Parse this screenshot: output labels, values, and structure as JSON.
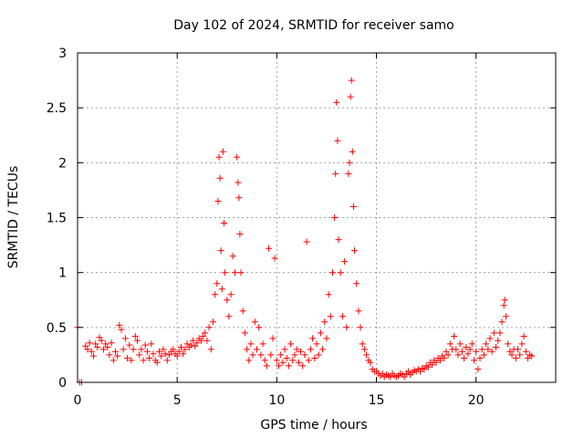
{
  "chart_data": {
    "type": "scatter",
    "title": "Day 102 of 2024, SRMTID for receiver samo",
    "xlabel": "GPS time / hours",
    "ylabel": "SRMTID / TECUs",
    "xlim": [
      0,
      24
    ],
    "ylim": [
      0,
      3
    ],
    "xticks": [
      0,
      5,
      10,
      15,
      20
    ],
    "xtick_labels": [
      "0",
      "5",
      "10",
      "15",
      "20"
    ],
    "yticks": [
      0,
      0.5,
      1,
      1.5,
      2,
      2.5,
      3
    ],
    "ytick_labels": [
      "0",
      "0.5",
      "1",
      "1.5",
      "2",
      "2.5",
      "3"
    ],
    "grid": true,
    "marker": "+",
    "series": [
      {
        "name": "SRMTID",
        "color": "#ff0000",
        "points": [
          [
            0.0,
            0.5
          ],
          [
            0.1,
            0.0
          ],
          [
            0.2,
            0.0
          ],
          [
            0.4,
            0.33
          ],
          [
            0.5,
            0.3
          ],
          [
            0.6,
            0.36
          ],
          [
            0.7,
            0.28
          ],
          [
            0.8,
            0.24
          ],
          [
            0.9,
            0.35
          ],
          [
            1.0,
            0.32
          ],
          [
            1.1,
            0.41
          ],
          [
            1.2,
            0.38
          ],
          [
            1.3,
            0.3
          ],
          [
            1.4,
            0.35
          ],
          [
            1.5,
            0.32
          ],
          [
            1.6,
            0.25
          ],
          [
            1.7,
            0.36
          ],
          [
            1.8,
            0.2
          ],
          [
            1.9,
            0.28
          ],
          [
            2.0,
            0.24
          ],
          [
            2.1,
            0.52
          ],
          [
            2.2,
            0.48
          ],
          [
            2.3,
            0.3
          ],
          [
            2.4,
            0.4
          ],
          [
            2.5,
            0.22
          ],
          [
            2.6,
            0.34
          ],
          [
            2.7,
            0.2
          ],
          [
            2.8,
            0.3
          ],
          [
            2.9,
            0.42
          ],
          [
            3.0,
            0.38
          ],
          [
            3.1,
            0.25
          ],
          [
            3.2,
            0.3
          ],
          [
            3.3,
            0.2
          ],
          [
            3.4,
            0.34
          ],
          [
            3.5,
            0.28
          ],
          [
            3.6,
            0.22
          ],
          [
            3.7,
            0.35
          ],
          [
            3.8,
            0.26
          ],
          [
            3.9,
            0.2
          ],
          [
            4.0,
            0.18
          ],
          [
            4.1,
            0.28
          ],
          [
            4.2,
            0.24
          ],
          [
            4.3,
            0.3
          ],
          [
            4.4,
            0.26
          ],
          [
            4.5,
            0.2
          ],
          [
            4.6,
            0.25
          ],
          [
            4.7,
            0.28
          ],
          [
            4.8,
            0.3
          ],
          [
            4.9,
            0.26
          ],
          [
            5.0,
            0.24
          ],
          [
            5.1,
            0.28
          ],
          [
            5.2,
            0.32
          ],
          [
            5.3,
            0.26
          ],
          [
            5.4,
            0.3
          ],
          [
            5.5,
            0.35
          ],
          [
            5.6,
            0.32
          ],
          [
            5.7,
            0.34
          ],
          [
            5.8,
            0.38
          ],
          [
            5.9,
            0.33
          ],
          [
            6.0,
            0.36
          ],
          [
            6.1,
            0.4
          ],
          [
            6.2,
            0.38
          ],
          [
            6.3,
            0.42
          ],
          [
            6.4,
            0.45
          ],
          [
            6.5,
            0.38
          ],
          [
            6.6,
            0.5
          ],
          [
            6.7,
            0.3
          ],
          [
            6.8,
            0.55
          ],
          [
            6.9,
            0.8
          ],
          [
            7.0,
            0.9
          ],
          [
            7.05,
            1.65
          ],
          [
            7.1,
            2.05
          ],
          [
            7.15,
            1.86
          ],
          [
            7.2,
            1.2
          ],
          [
            7.25,
            0.85
          ],
          [
            7.3,
            2.1
          ],
          [
            7.35,
            1.45
          ],
          [
            7.4,
            1.0
          ],
          [
            7.5,
            0.75
          ],
          [
            7.6,
            0.6
          ],
          [
            7.7,
            0.8
          ],
          [
            7.8,
            1.15
          ],
          [
            7.9,
            1.0
          ],
          [
            8.0,
            2.05
          ],
          [
            8.05,
            1.82
          ],
          [
            8.1,
            1.68
          ],
          [
            8.15,
            1.35
          ],
          [
            8.2,
            1.0
          ],
          [
            8.3,
            0.65
          ],
          [
            8.4,
            0.45
          ],
          [
            8.5,
            0.3
          ],
          [
            8.6,
            0.2
          ],
          [
            8.7,
            0.35
          ],
          [
            8.8,
            0.25
          ],
          [
            8.9,
            0.55
          ],
          [
            9.0,
            0.3
          ],
          [
            9.1,
            0.5
          ],
          [
            9.2,
            0.25
          ],
          [
            9.3,
            0.35
          ],
          [
            9.4,
            0.2
          ],
          [
            9.5,
            0.15
          ],
          [
            9.6,
            1.22
          ],
          [
            9.7,
            0.25
          ],
          [
            9.8,
            0.4
          ],
          [
            9.9,
            1.13
          ],
          [
            10.0,
            0.2
          ],
          [
            10.1,
            0.15
          ],
          [
            10.2,
            0.25
          ],
          [
            10.3,
            0.18
          ],
          [
            10.4,
            0.3
          ],
          [
            10.5,
            0.22
          ],
          [
            10.6,
            0.15
          ],
          [
            10.7,
            0.35
          ],
          [
            10.8,
            0.2
          ],
          [
            10.9,
            0.25
          ],
          [
            11.0,
            0.3
          ],
          [
            11.1,
            0.18
          ],
          [
            11.2,
            0.28
          ],
          [
            11.3,
            0.15
          ],
          [
            11.4,
            0.25
          ],
          [
            11.5,
            1.28
          ],
          [
            11.6,
            0.2
          ],
          [
            11.7,
            0.3
          ],
          [
            11.8,
            0.4
          ],
          [
            11.9,
            0.22
          ],
          [
            12.0,
            0.35
          ],
          [
            12.1,
            0.25
          ],
          [
            12.2,
            0.45
          ],
          [
            12.3,
            0.3
          ],
          [
            12.4,
            0.55
          ],
          [
            12.5,
            0.4
          ],
          [
            12.6,
            0.8
          ],
          [
            12.7,
            0.6
          ],
          [
            12.8,
            1.0
          ],
          [
            12.9,
            1.5
          ],
          [
            12.95,
            1.9
          ],
          [
            13.0,
            2.55
          ],
          [
            13.05,
            2.2
          ],
          [
            13.1,
            1.3
          ],
          [
            13.2,
            1.0
          ],
          [
            13.3,
            0.6
          ],
          [
            13.4,
            1.1
          ],
          [
            13.5,
            0.5
          ],
          [
            13.6,
            1.9
          ],
          [
            13.65,
            2.0
          ],
          [
            13.7,
            2.6
          ],
          [
            13.75,
            2.75
          ],
          [
            13.8,
            2.1
          ],
          [
            13.85,
            1.6
          ],
          [
            13.9,
            1.2
          ],
          [
            14.0,
            0.9
          ],
          [
            14.1,
            0.65
          ],
          [
            14.2,
            0.5
          ],
          [
            14.3,
            0.35
          ],
          [
            14.4,
            0.3
          ],
          [
            14.5,
            0.25
          ],
          [
            14.6,
            0.2
          ],
          [
            14.7,
            0.18
          ],
          [
            14.8,
            0.12
          ],
          [
            14.9,
            0.1
          ],
          [
            15.0,
            0.1
          ],
          [
            15.1,
            0.08
          ],
          [
            15.2,
            0.06
          ],
          [
            15.3,
            0.08
          ],
          [
            15.4,
            0.05
          ],
          [
            15.5,
            0.07
          ],
          [
            15.6,
            0.06
          ],
          [
            15.7,
            0.05
          ],
          [
            15.8,
            0.08
          ],
          [
            15.9,
            0.06
          ],
          [
            16.0,
            0.05
          ],
          [
            16.1,
            0.06
          ],
          [
            16.2,
            0.08
          ],
          [
            16.3,
            0.07
          ],
          [
            16.4,
            0.05
          ],
          [
            16.5,
            0.08
          ],
          [
            16.6,
            0.1
          ],
          [
            16.7,
            0.07
          ],
          [
            16.8,
            0.09
          ],
          [
            16.9,
            0.11
          ],
          [
            17.0,
            0.1
          ],
          [
            17.1,
            0.12
          ],
          [
            17.2,
            0.1
          ],
          [
            17.3,
            0.13
          ],
          [
            17.4,
            0.12
          ],
          [
            17.5,
            0.15
          ],
          [
            17.6,
            0.14
          ],
          [
            17.7,
            0.18
          ],
          [
            17.8,
            0.16
          ],
          [
            17.9,
            0.2
          ],
          [
            18.0,
            0.18
          ],
          [
            18.1,
            0.22
          ],
          [
            18.2,
            0.2
          ],
          [
            18.3,
            0.24
          ],
          [
            18.4,
            0.22
          ],
          [
            18.5,
            0.28
          ],
          [
            18.6,
            0.25
          ],
          [
            18.7,
            0.35
          ],
          [
            18.8,
            0.3
          ],
          [
            18.9,
            0.42
          ],
          [
            19.0,
            0.3
          ],
          [
            19.1,
            0.25
          ],
          [
            19.2,
            0.35
          ],
          [
            19.3,
            0.28
          ],
          [
            19.4,
            0.22
          ],
          [
            19.5,
            0.32
          ],
          [
            19.6,
            0.26
          ],
          [
            19.7,
            0.3
          ],
          [
            19.8,
            0.35
          ],
          [
            19.9,
            0.2
          ],
          [
            20.0,
            0.28
          ],
          [
            20.1,
            0.12
          ],
          [
            20.2,
            0.22
          ],
          [
            20.3,
            0.3
          ],
          [
            20.4,
            0.25
          ],
          [
            20.5,
            0.35
          ],
          [
            20.6,
            0.3
          ],
          [
            20.7,
            0.4
          ],
          [
            20.8,
            0.28
          ],
          [
            20.9,
            0.45
          ],
          [
            21.0,
            0.32
          ],
          [
            21.1,
            0.38
          ],
          [
            21.2,
            0.45
          ],
          [
            21.3,
            0.55
          ],
          [
            21.4,
            0.7
          ],
          [
            21.45,
            0.75
          ],
          [
            21.5,
            0.6
          ],
          [
            21.6,
            0.35
          ],
          [
            21.7,
            0.28
          ],
          [
            21.8,
            0.25
          ],
          [
            21.9,
            0.3
          ],
          [
            22.0,
            0.22
          ],
          [
            22.1,
            0.3
          ],
          [
            22.2,
            0.25
          ],
          [
            22.3,
            0.35
          ],
          [
            22.4,
            0.42
          ],
          [
            22.5,
            0.28
          ],
          [
            22.6,
            0.22
          ],
          [
            22.7,
            0.25
          ],
          [
            22.8,
            0.24
          ]
        ]
      }
    ]
  }
}
